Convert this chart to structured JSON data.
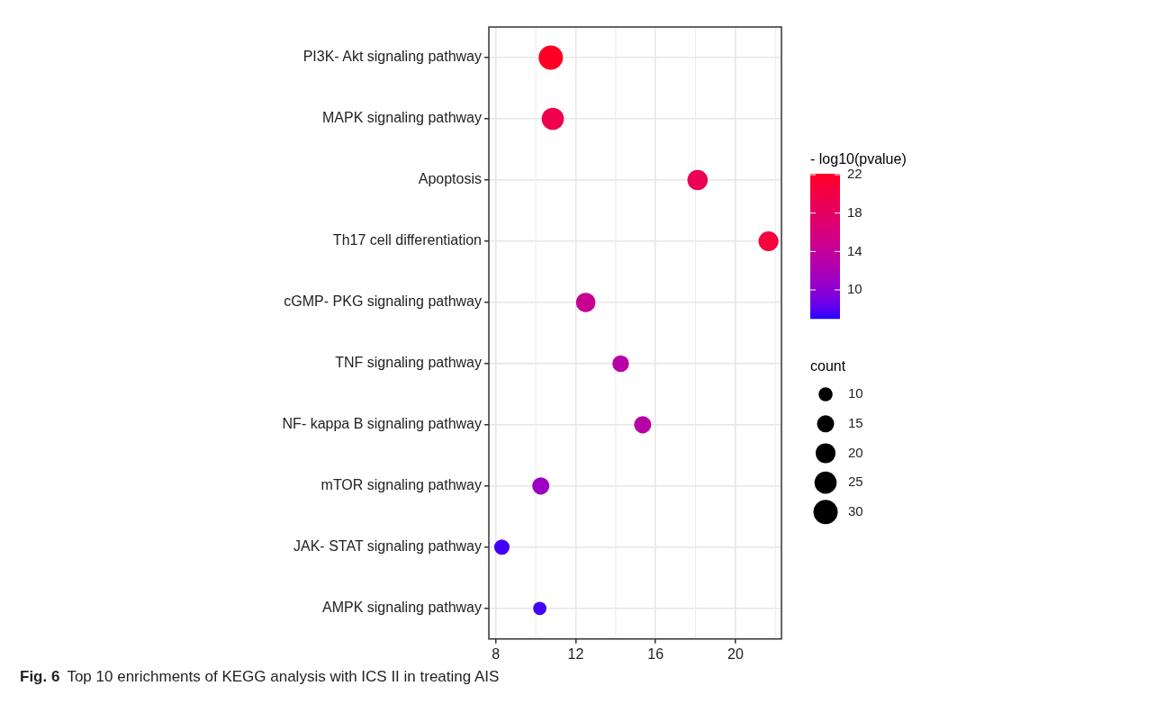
{
  "chart_data": {
    "type": "bubble",
    "orientation": "horizontal",
    "categories": [
      "PI3K- Akt signaling pathway",
      "MAPK signaling pathway",
      "Apoptosis",
      "Th17 cell differentiation",
      "cGMP- PKG signaling pathway",
      "TNF signaling pathway",
      "NF- kappa B signaling pathway",
      "mTOR signaling pathway",
      "JAK- STAT signaling pathway",
      "AMPK signaling pathway"
    ],
    "values": [
      10.75,
      10.85,
      18.1,
      21.65,
      12.5,
      14.25,
      15.35,
      10.25,
      8.3,
      10.2
    ],
    "sizes": [
      30,
      25,
      21,
      20,
      19,
      14,
      15,
      15,
      12,
      9
    ],
    "cvalues": [
      22,
      19.5,
      19,
      20.5,
      14.5,
      13,
      13,
      11,
      7.5,
      7.5
    ],
    "size_legend": [
      10,
      15,
      20,
      25,
      30
    ],
    "legend_title": "count",
    "clabel": "- log10(pvalue)",
    "clim": [
      7,
      22.1
    ],
    "cticks": [
      10,
      14,
      18,
      22
    ],
    "xlim": [
      7.65,
      22.3
    ],
    "xticks": [
      8,
      12,
      16,
      20
    ],
    "grid": true,
    "annotations": [
      "Fig. 6",
      "Top 10 enrichments of KEGG analysis with ICS II in treating AIS"
    ]
  }
}
